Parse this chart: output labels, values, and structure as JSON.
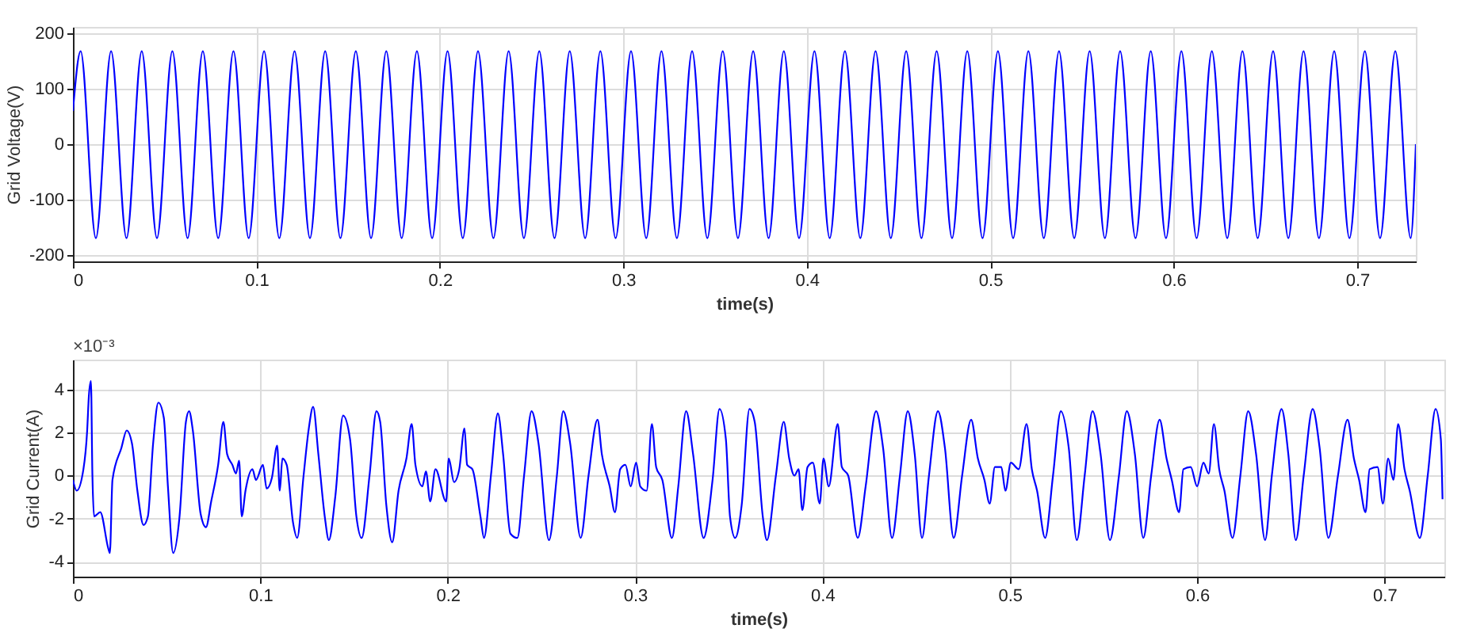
{
  "chart_data": [
    {
      "type": "line",
      "xlabel": "time(s)",
      "ylabel": "Grid Voltage(V)",
      "xlim": [
        0,
        0.732
      ],
      "xticks": [
        0,
        0.1,
        0.2,
        0.3,
        0.4,
        0.5,
        0.6,
        0.7
      ],
      "ylim": [
        -212,
        212
      ],
      "yticks": [
        -200,
        -100,
        0,
        100,
        200
      ],
      "grid": true,
      "series": [
        {
          "color": "#0000ff",
          "x": [
            0,
            0.0042,
            0.0125,
            0.0208,
            0.0292,
            0.0375,
            0.0458,
            0.0542,
            0.0625,
            0.0708,
            0.0792,
            0.0875,
            0.0958,
            0.1042,
            0.1125,
            0.1208,
            0.1292,
            0.1375,
            0.1458,
            0.1542,
            0.1625,
            0.1708,
            0.1792,
            0.1875,
            0.1958,
            0.2042,
            0.2125,
            0.2208,
            0.2292,
            0.2375,
            0.2458,
            0.2542,
            0.2625,
            0.2708,
            0.2792,
            0.2875,
            0.2958,
            0.3042,
            0.3125,
            0.3208,
            0.3292,
            0.3375,
            0.3458,
            0.3542,
            0.3625,
            0.3708,
            0.3792,
            0.3875,
            0.3958,
            0.4042,
            0.4125,
            0.4208,
            0.4292,
            0.4375,
            0.4458,
            0.4542,
            0.4625,
            0.4708,
            0.4792,
            0.4875,
            0.4958,
            0.5042,
            0.5125,
            0.5208,
            0.5292,
            0.5375,
            0.5458,
            0.5542,
            0.5625,
            0.5708,
            0.5792,
            0.5875,
            0.5958,
            0.6042,
            0.6125,
            0.6208,
            0.6292,
            0.6375,
            0.6458,
            0.6542,
            0.6625,
            0.6708,
            0.6792,
            0.6875,
            0.6958,
            0.7042,
            0.7125,
            0.7208,
            0.7292,
            0.732
          ],
          "values": [
            60,
            168,
            -170,
            168,
            -170,
            168,
            -170,
            168,
            -170,
            168,
            -170,
            168,
            -170,
            168,
            -170,
            168,
            -170,
            168,
            -170,
            168,
            -170,
            168,
            -170,
            168,
            -170,
            168,
            -170,
            168,
            -170,
            168,
            -170,
            168,
            -170,
            168,
            -170,
            168,
            -170,
            168,
            -170,
            168,
            -170,
            168,
            -170,
            168,
            -170,
            168,
            -170,
            168,
            -170,
            168,
            -170,
            168,
            -170,
            168,
            -170,
            168,
            -170,
            168,
            -170,
            168,
            -170,
            168,
            -170,
            168,
            -170,
            168,
            -170,
            168,
            -170,
            168,
            -170,
            168,
            -170,
            168,
            -170,
            168,
            -170,
            168,
            -170,
            168,
            -170,
            168,
            -170,
            168,
            -170,
            168,
            -170,
            168,
            -170,
            0
          ]
        }
      ]
    },
    {
      "type": "line",
      "xlabel": "time(s)",
      "ylabel": "Grid Current(A)",
      "annotations": [
        "×10⁻³"
      ],
      "xlim": [
        0,
        0.732
      ],
      "xticks": [
        0,
        0.1,
        0.2,
        0.3,
        0.4,
        0.5,
        0.6,
        0.7
      ],
      "ylim": [
        -4.7,
        5.4
      ],
      "yticks": [
        -4,
        -2,
        0,
        2,
        4
      ],
      "grid": true,
      "series": [
        {
          "color": "#0000ff",
          "x": [
            0,
            0.002,
            0.0056,
            0.0076,
            0.0085,
            0.0096,
            0.0104,
            0.0113,
            0.0146,
            0.0189,
            0.0197,
            0.0211,
            0.0259,
            0.0287,
            0.0315,
            0.0344,
            0.0377,
            0.04,
            0.0428,
            0.0456,
            0.0485,
            0.0507,
            0.0535,
            0.0569,
            0.0603,
            0.062,
            0.064,
            0.0682,
            0.071,
            0.0738,
            0.0775,
            0.0803,
            0.0823,
            0.0851,
            0.087,
            0.0887,
            0.0901,
            0.0921,
            0.0958,
            0.0977,
            0.1014,
            0.1034,
            0.1062,
            0.109,
            0.1104,
            0.1118,
            0.1141,
            0.1175,
            0.1197,
            0.1231,
            0.1259,
            0.1282,
            0.131,
            0.1344,
            0.1366,
            0.14,
            0.1442,
            0.1479,
            0.1513,
            0.1541,
            0.1583,
            0.162,
            0.164,
            0.1673,
            0.1704,
            0.1738,
            0.178,
            0.1808,
            0.1828,
            0.1865,
            0.1884,
            0.1907,
            0.1935,
            0.1992,
            0.2006,
            0.2034,
            0.2062,
            0.209,
            0.2104,
            0.2132,
            0.2175,
            0.2194,
            0.2231,
            0.2268,
            0.2296,
            0.2335,
            0.2372,
            0.2408,
            0.2448,
            0.2485,
            0.2541,
            0.2583,
            0.2617,
            0.2654,
            0.271,
            0.2752,
            0.28,
            0.2823,
            0.2865,
            0.2893,
            0.2921,
            0.2949,
            0.2977,
            0.3006,
            0.3028,
            0.3062,
            0.309,
            0.3113,
            0.3146,
            0.3197,
            0.3231,
            0.3273,
            0.331,
            0.3366,
            0.3414,
            0.3451,
            0.3485,
            0.3507,
            0.3535,
            0.3569,
            0.3611,
            0.3639,
            0.3682,
            0.3704,
            0.3752,
            0.3794,
            0.3823,
            0.3851,
            0.3873,
            0.3893,
            0.3921,
            0.3949,
            0.3986,
            0.4006,
            0.4034,
            0.4082,
            0.4104,
            0.4138,
            0.4189,
            0.4231,
            0.4287,
            0.4324,
            0.4372,
            0.4414,
            0.4456,
            0.4493,
            0.4532,
            0.4569,
            0.4617,
            0.4654,
            0.4701,
            0.4746,
            0.4794,
            0.483,
            0.4865,
            0.4893,
            0.4921,
            0.4955,
            0.4977,
            0.5006,
            0.5048,
            0.509,
            0.5118,
            0.5146,
            0.5189,
            0.5231,
            0.5273,
            0.5315,
            0.5358,
            0.54,
            0.5442,
            0.5485,
            0.5535,
            0.5583,
            0.5625,
            0.5668,
            0.5713,
            0.5755,
            0.58,
            0.5837,
            0.5865,
            0.5904,
            0.5927,
            0.5966,
            0.6,
            0.6034,
            0.6062,
            0.609,
            0.6118,
            0.6146,
            0.6189,
            0.6231,
            0.6273,
            0.6315,
            0.6363,
            0.6399,
            0.6451,
            0.6487,
            0.6527,
            0.6569,
            0.6617,
            0.6654,
            0.6701,
            0.6752,
            0.6803,
            0.6837,
            0.6865,
            0.6899,
            0.6921,
            0.6963,
            0.6992,
            0.702,
            0.7048,
            0.7073,
            0.7107,
            0.7135,
            0.7189,
            0.7231,
            0.7273,
            0.7301,
            0.731
          ],
          "values": [
            -0.2,
            -0.7,
            0.3,
            2.1,
            3.7,
            4.4,
            0,
            -1.9,
            -1.7,
            -3.4,
            -3.6,
            -0.2,
            1.3,
            2.1,
            1.5,
            -0.7,
            -2.3,
            -1.9,
            1.5,
            3.4,
            2.7,
            -0.5,
            -3.6,
            -1.9,
            2.5,
            3.0,
            2.1,
            -1.8,
            -2.4,
            -1.2,
            0.5,
            2.5,
            1.0,
            0.5,
            0.1,
            0.7,
            -1.9,
            -0.7,
            0.3,
            -0.2,
            0.5,
            -0.6,
            -0.1,
            1.4,
            -0.7,
            0.8,
            0.5,
            -2.2,
            -2.9,
            0,
            2.2,
            3.2,
            1.0,
            -1.9,
            -3.0,
            -1.0,
            2.8,
            1.7,
            -1.9,
            -2.9,
            0,
            3.0,
            2.5,
            -1.4,
            -3.1,
            -0.7,
            0.8,
            2.4,
            0.5,
            -0.5,
            0.2,
            -1.2,
            0.3,
            -1.2,
            0.8,
            -0.3,
            0.3,
            2.2,
            0.5,
            0.3,
            -1.9,
            -2.9,
            0,
            2.9,
            1.0,
            -2.7,
            -2.9,
            0,
            3.0,
            1.5,
            -3.0,
            0,
            3.0,
            1.5,
            -2.9,
            0,
            2.6,
            1.0,
            -0.5,
            -1.7,
            0.3,
            0.5,
            -0.5,
            0.6,
            -0.5,
            -0.7,
            2.4,
            0.4,
            -0.2,
            -2.9,
            -0.5,
            3.0,
            1.0,
            -2.9,
            -0.2,
            3.1,
            1.7,
            -1.9,
            -2.9,
            -1.4,
            3.1,
            2.5,
            -1.9,
            -3.0,
            0,
            2.5,
            0.8,
            0,
            0.3,
            -1.6,
            0.4,
            0.6,
            -1.3,
            0.8,
            -0.5,
            2.4,
            0.4,
            0,
            -2.9,
            -0.5,
            3.0,
            1.3,
            -2.9,
            0,
            3.0,
            1.0,
            -2.9,
            0,
            3.0,
            1.3,
            -2.9,
            0,
            2.6,
            0.8,
            -0.2,
            -1.3,
            0.4,
            0.4,
            -0.7,
            0.6,
            0.3,
            2.4,
            0.3,
            -0.7,
            -2.9,
            0,
            3.0,
            1.3,
            -3.0,
            0,
            3.0,
            1.0,
            -3.0,
            0,
            3.0,
            1.0,
            -2.9,
            0,
            2.6,
            0.8,
            -0.2,
            -1.7,
            0.3,
            0.4,
            -0.5,
            0.6,
            0.1,
            2.4,
            0.3,
            -0.7,
            -2.9,
            0,
            3.0,
            1.0,
            -3.0,
            0,
            3.1,
            1.0,
            -3.0,
            0,
            3.1,
            1.3,
            -2.9,
            0,
            2.6,
            0.8,
            -0.2,
            -1.7,
            0.3,
            0.4,
            -1.3,
            0.8,
            -0.2,
            2.4,
            0.3,
            -0.7,
            -2.9,
            0,
            3.1,
            1.7,
            -1.1
          ]
        }
      ]
    }
  ]
}
